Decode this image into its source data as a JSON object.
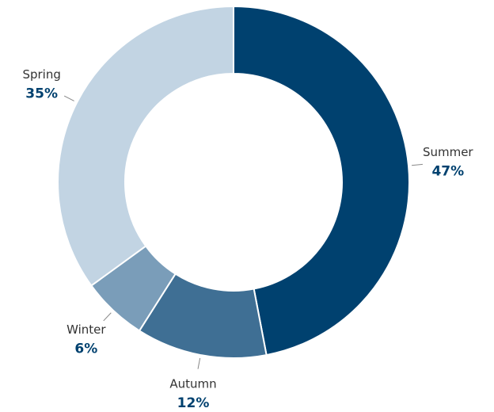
{
  "chart_data": {
    "type": "donut",
    "categories": [
      "Summer",
      "Autumn",
      "Winter",
      "Spring"
    ],
    "values": [
      47,
      12,
      6,
      35
    ],
    "value_labels": [
      "47%",
      "12%",
      "6%",
      "35%"
    ],
    "colors": [
      "#00416f",
      "#3f6f94",
      "#7a9db9",
      "#c2d4e3"
    ]
  }
}
